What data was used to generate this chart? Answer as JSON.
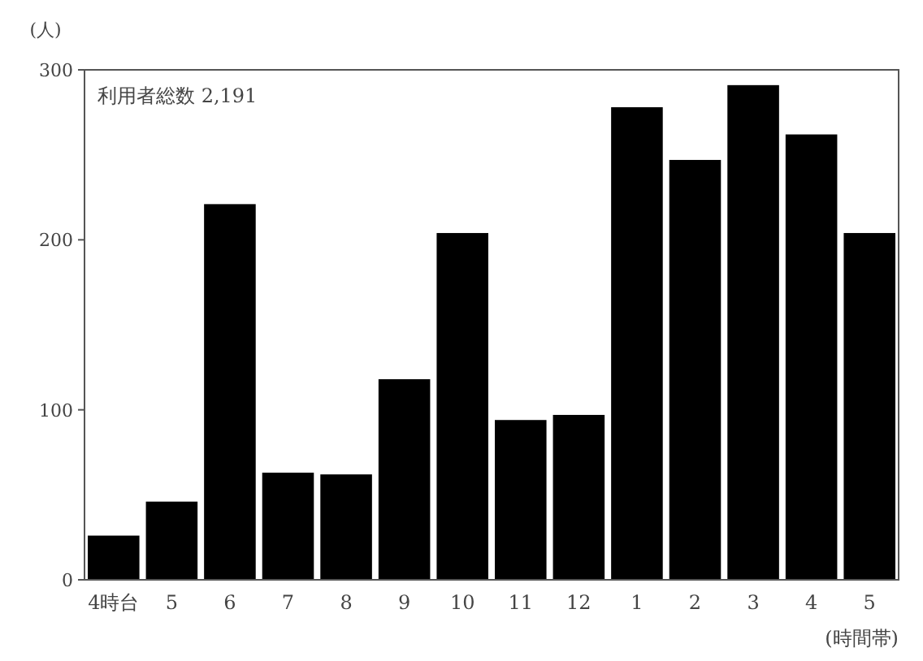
{
  "chart_data": {
    "type": "bar",
    "ylabel": "(人)",
    "xlabel": "(時間帯)",
    "annotations": [
      "利用者総数 2,191"
    ],
    "categories": [
      "4時台",
      "5",
      "6",
      "7",
      "8",
      "9",
      "10",
      "11",
      "12",
      "1",
      "2",
      "3",
      "4",
      "5"
    ],
    "values": [
      26,
      46,
      221,
      63,
      62,
      118,
      204,
      94,
      97,
      278,
      247,
      291,
      262,
      204
    ],
    "color": "#000000",
    "ylim": [
      0,
      300
    ],
    "yticks": [
      0,
      100,
      200,
      300
    ],
    "grid": false
  }
}
